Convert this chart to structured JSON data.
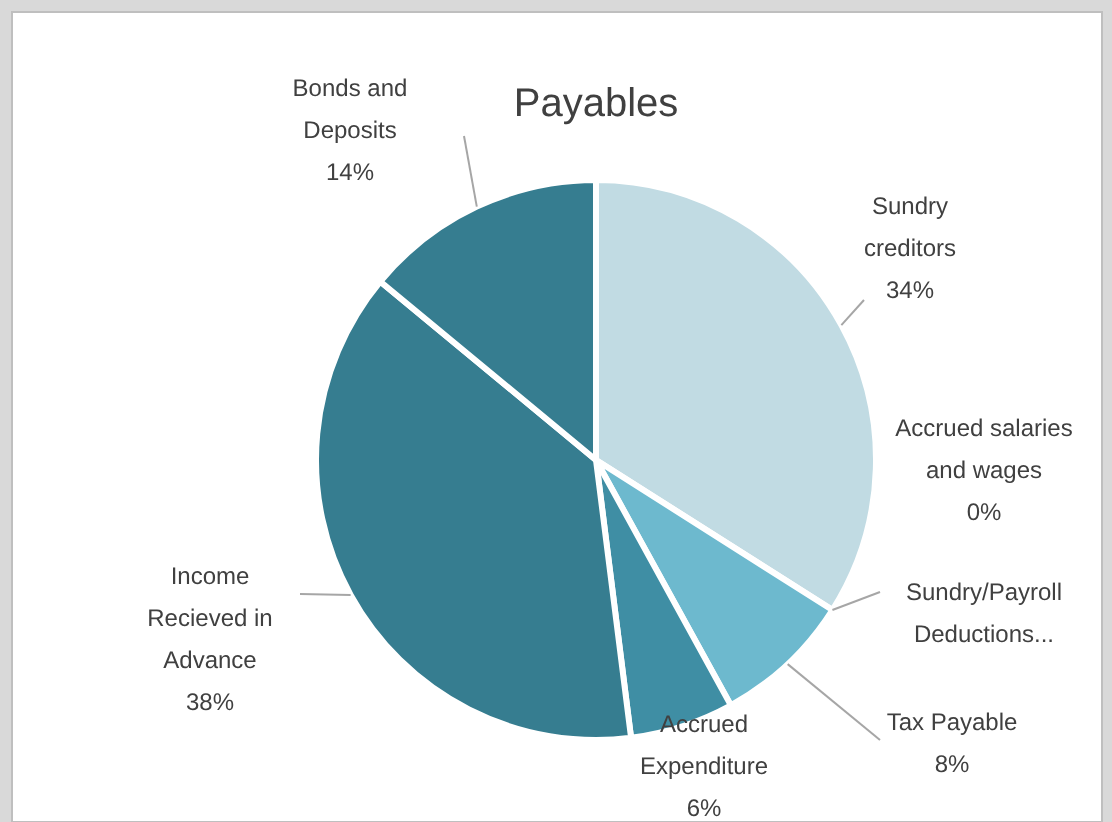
{
  "chart_data": {
    "type": "pie",
    "title": "Payables",
    "categories": [
      "Sundry creditors",
      "Accrued salaries and wages",
      "Sundry/Payroll Deductions...",
      "Tax Payable",
      "Accrued Expenditure",
      "Income Recieved in Advance",
      "Bonds and Deposits"
    ],
    "values": [
      34,
      0,
      0,
      8,
      6,
      38,
      14
    ],
    "value_labels": [
      "34%",
      "0%",
      null,
      "8%",
      "6%",
      "38%",
      "14%"
    ],
    "colors": [
      "#c1dbe3",
      "#a9d3e0",
      "#92c6d6",
      "#6db9ce",
      "#3f8ea4",
      "#367d90",
      "#367d90"
    ]
  }
}
